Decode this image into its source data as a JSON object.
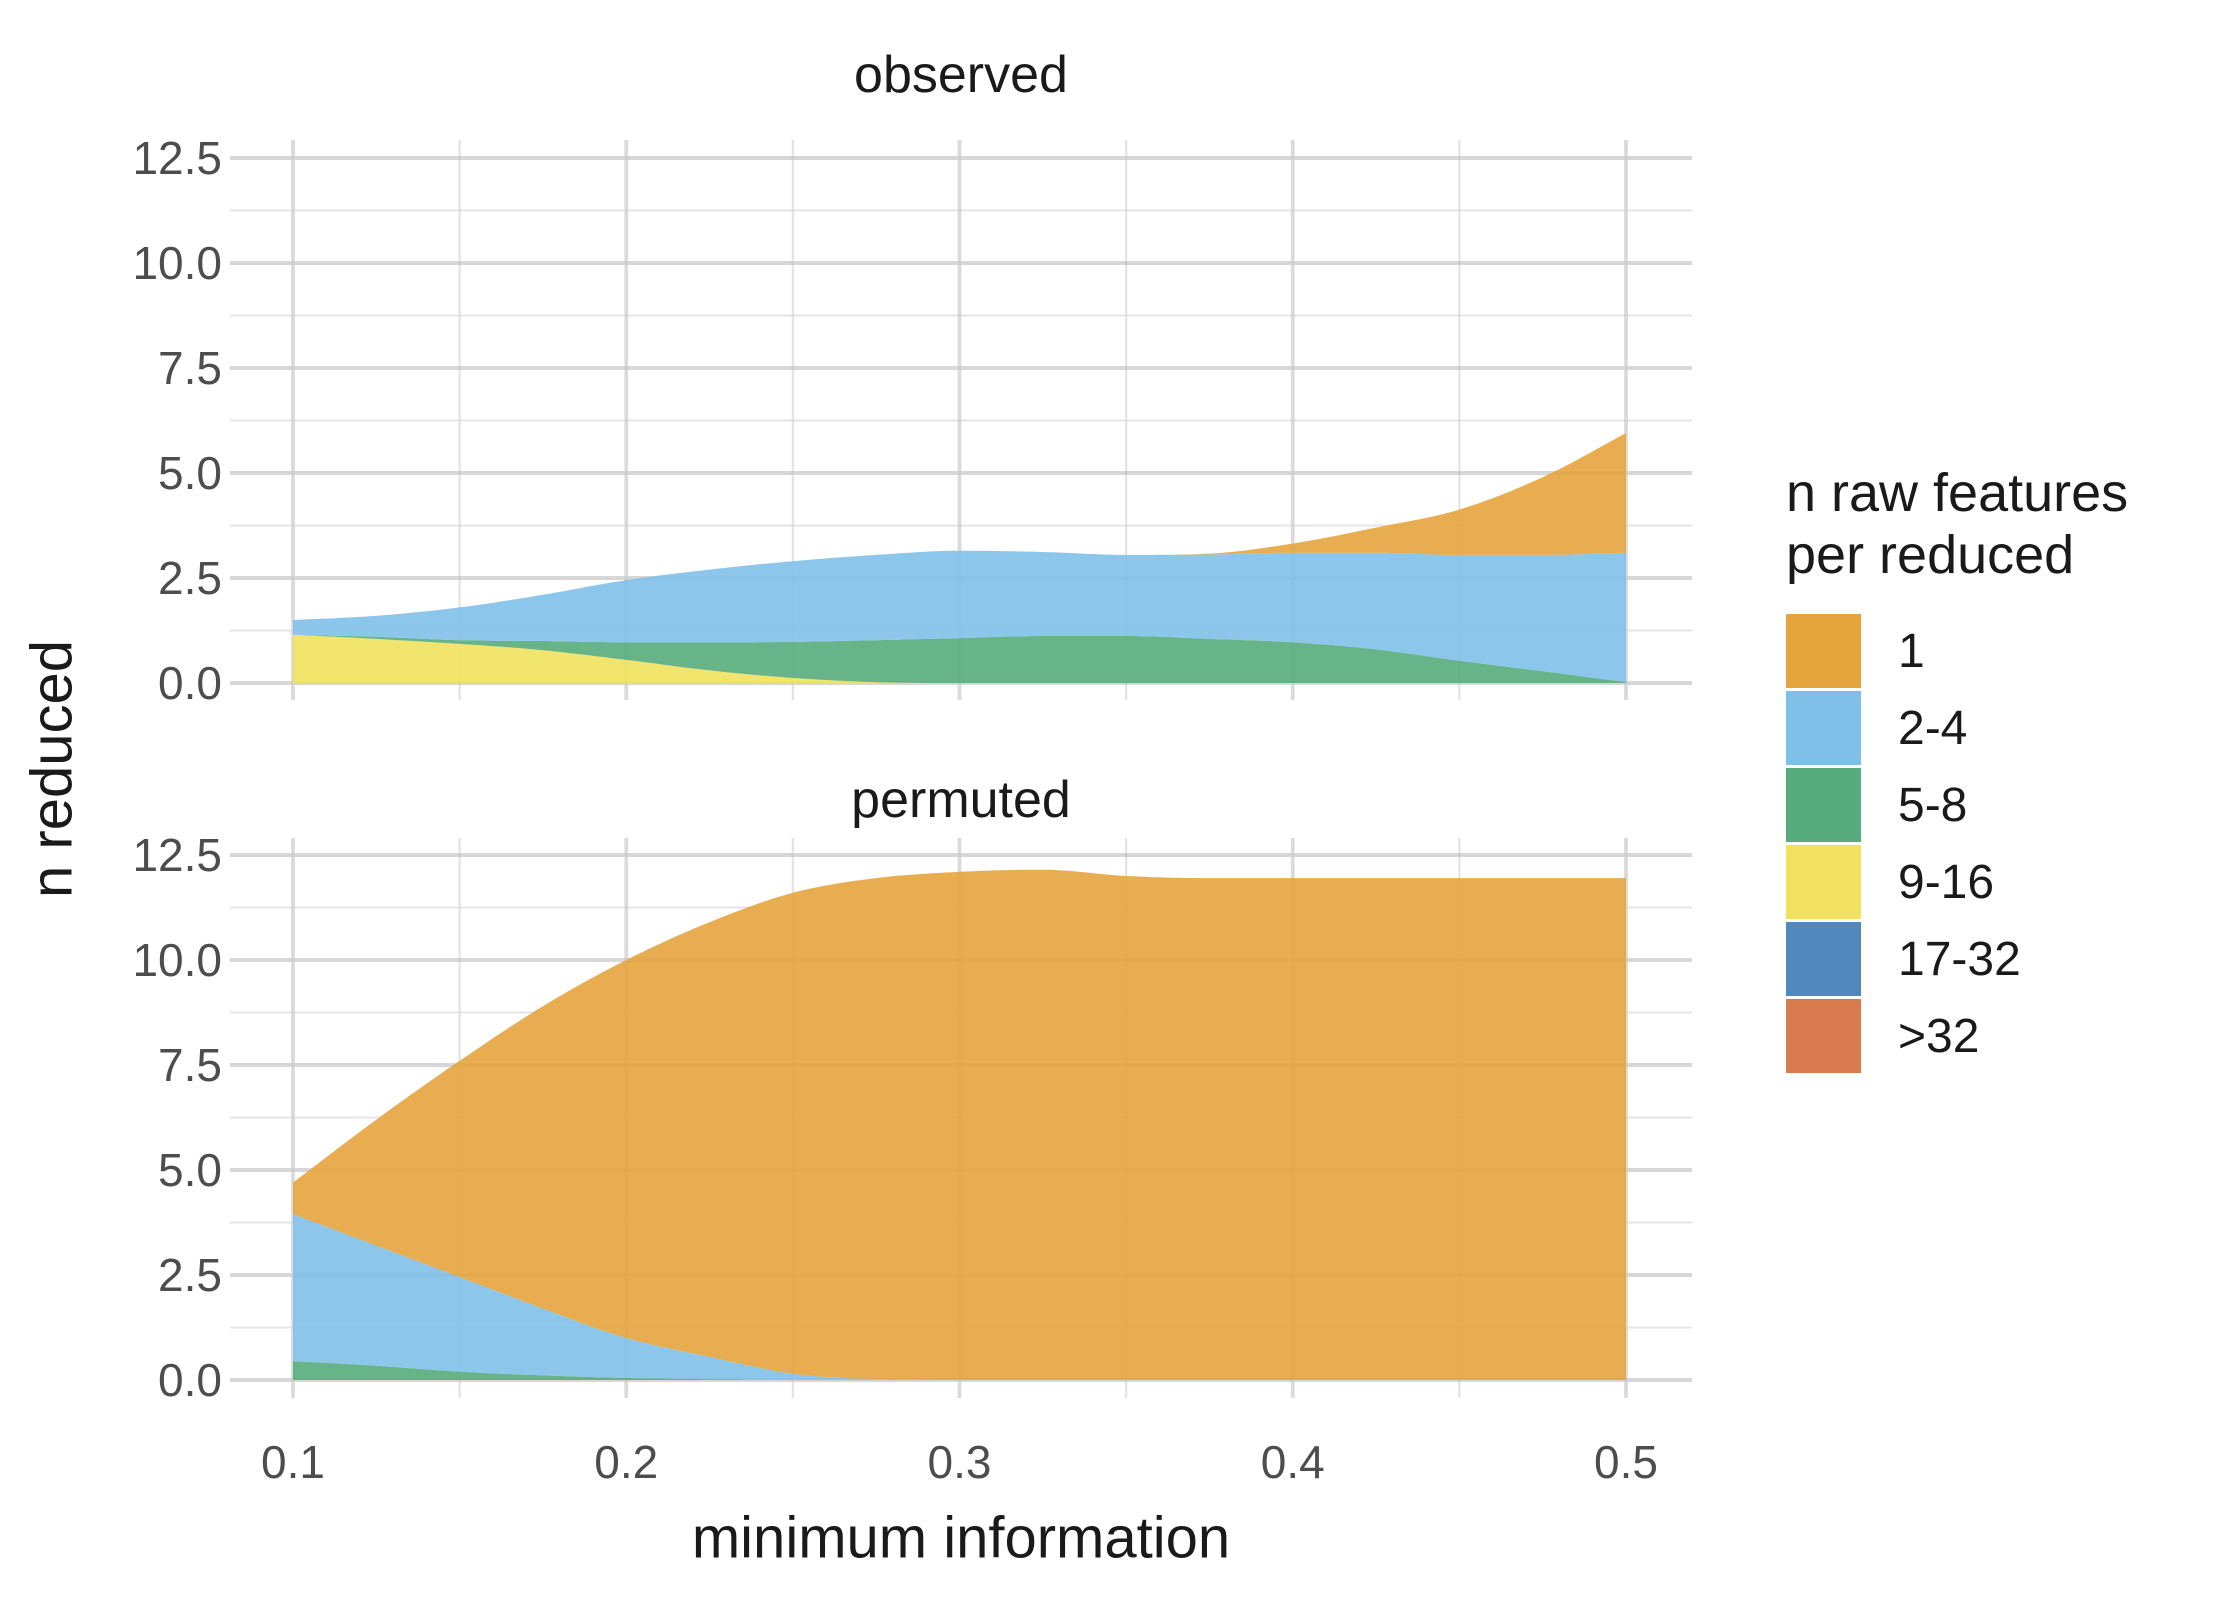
{
  "figure": {
    "facets": [
      {
        "label": "observed"
      },
      {
        "label": "permuted"
      }
    ],
    "x_axis": {
      "title": "minimum information",
      "tick_labels": [
        "0.1",
        "0.2",
        "0.3",
        "0.4",
        "0.5"
      ]
    },
    "y_axis": {
      "title": "n reduced",
      "tick_labels": [
        "0.0",
        "2.5",
        "5.0",
        "7.5",
        "10.0",
        "12.5"
      ]
    },
    "legend": {
      "title_line1": "n raw features",
      "title_line2": "per reduced",
      "entries": [
        {
          "label": "1",
          "color": "#E6A43D"
        },
        {
          "label": "2-4",
          "color": "#7FC0E8"
        },
        {
          "label": "5-8",
          "color": "#56AC7C"
        },
        {
          "label": "9-16",
          "color": "#F0E25E"
        },
        {
          "label": "17-32",
          "color": "#5189BD"
        },
        {
          "label": ">32",
          "color": "#D87B4F"
        }
      ]
    },
    "colors": {
      "background": "#FFFFFF",
      "grid_major": "#E3E3E3",
      "grid_minor": "#EDEDED",
      "tick_text": "#4D4D4D",
      "title_text": "#1A1A1A"
    }
  },
  "chart_data": {
    "type": "area",
    "stacked": true,
    "title": "",
    "xlabel": "minimum information",
    "ylabel": "n reduced",
    "legend_title": "n raw features per reduced",
    "legend_position": "right",
    "grid": true,
    "xlim": [
      0.1,
      0.5
    ],
    "ylim": [
      0,
      12.5
    ],
    "x_ticks": [
      0.1,
      0.2,
      0.3,
      0.4,
      0.5
    ],
    "y_ticks": [
      0.0,
      2.5,
      5.0,
      7.5,
      10.0,
      12.5
    ],
    "stack_order_bottom_to_top": [
      ">32",
      "17-32",
      "9-16",
      "5-8",
      "2-4",
      "1"
    ],
    "x": [
      0.1,
      0.125,
      0.15,
      0.175,
      0.2,
      0.225,
      0.25,
      0.275,
      0.3,
      0.325,
      0.35,
      0.375,
      0.4,
      0.425,
      0.45,
      0.475,
      0.5
    ],
    "facets": [
      {
        "name": "observed",
        "series": [
          {
            "name": "1",
            "values": [
              0,
              0,
              0,
              0,
              0,
              0,
              0,
              0,
              0,
              0,
              0,
              0.02,
              0.22,
              0.6,
              1.08,
              1.85,
              2.85
            ]
          },
          {
            "name": "2-4",
            "values": [
              0.35,
              0.5,
              0.78,
              1.1,
              1.48,
              1.73,
              1.92,
              2.03,
              2.08,
              2.0,
              1.93,
              2.01,
              2.13,
              2.3,
              2.52,
              2.77,
              3.08
            ]
          },
          {
            "name": "5-8",
            "values": [
              0,
              0.05,
              0.09,
              0.22,
              0.42,
              0.67,
              0.86,
              1.0,
              1.07,
              1.12,
              1.12,
              1.05,
              0.97,
              0.8,
              0.53,
              0.28,
              0.02
            ]
          },
          {
            "name": "9-16",
            "values": [
              1.15,
              1.05,
              0.93,
              0.78,
              0.55,
              0.3,
              0.12,
              0.02,
              0,
              0,
              0,
              0,
              0,
              0,
              0,
              0,
              0
            ]
          },
          {
            "name": "17-32",
            "values": [
              0,
              0,
              0,
              0,
              0,
              0,
              0,
              0,
              0,
              0,
              0,
              0,
              0,
              0,
              0,
              0,
              0
            ]
          },
          {
            "name": ">32",
            "values": [
              0,
              0,
              0,
              0,
              0,
              0,
              0,
              0,
              0,
              0,
              0,
              0,
              0,
              0,
              0,
              0,
              0
            ]
          }
        ]
      },
      {
        "name": "permuted",
        "series": [
          {
            "name": "1",
            "values": [
              0.75,
              3.0,
              5.15,
              7.2,
              9.0,
              10.35,
              11.45,
              11.93,
              12.1,
              12.15,
              12.0,
              11.95,
              11.95,
              11.95,
              11.95,
              11.95,
              11.95
            ]
          },
          {
            "name": "2-4",
            "values": [
              3.5,
              2.86,
              2.25,
              1.59,
              0.95,
              0.53,
              0.15,
              0.02,
              0,
              0,
              0,
              0,
              0,
              0,
              0,
              0,
              0
            ]
          },
          {
            "name": "5-8",
            "values": [
              0.45,
              0.34,
              0.2,
              0.11,
              0.05,
              0.02,
              0,
              0,
              0,
              0,
              0,
              0,
              0,
              0,
              0,
              0,
              0
            ]
          },
          {
            "name": "9-16",
            "values": [
              0,
              0,
              0,
              0,
              0,
              0,
              0,
              0,
              0,
              0,
              0,
              0,
              0,
              0,
              0,
              0,
              0
            ]
          },
          {
            "name": "17-32",
            "values": [
              0,
              0,
              0,
              0,
              0,
              0,
              0,
              0,
              0,
              0,
              0,
              0,
              0,
              0,
              0,
              0,
              0
            ]
          },
          {
            "name": ">32",
            "values": [
              0,
              0,
              0,
              0,
              0,
              0,
              0,
              0,
              0,
              0,
              0,
              0,
              0,
              0,
              0,
              0,
              0
            ]
          }
        ]
      }
    ]
  }
}
